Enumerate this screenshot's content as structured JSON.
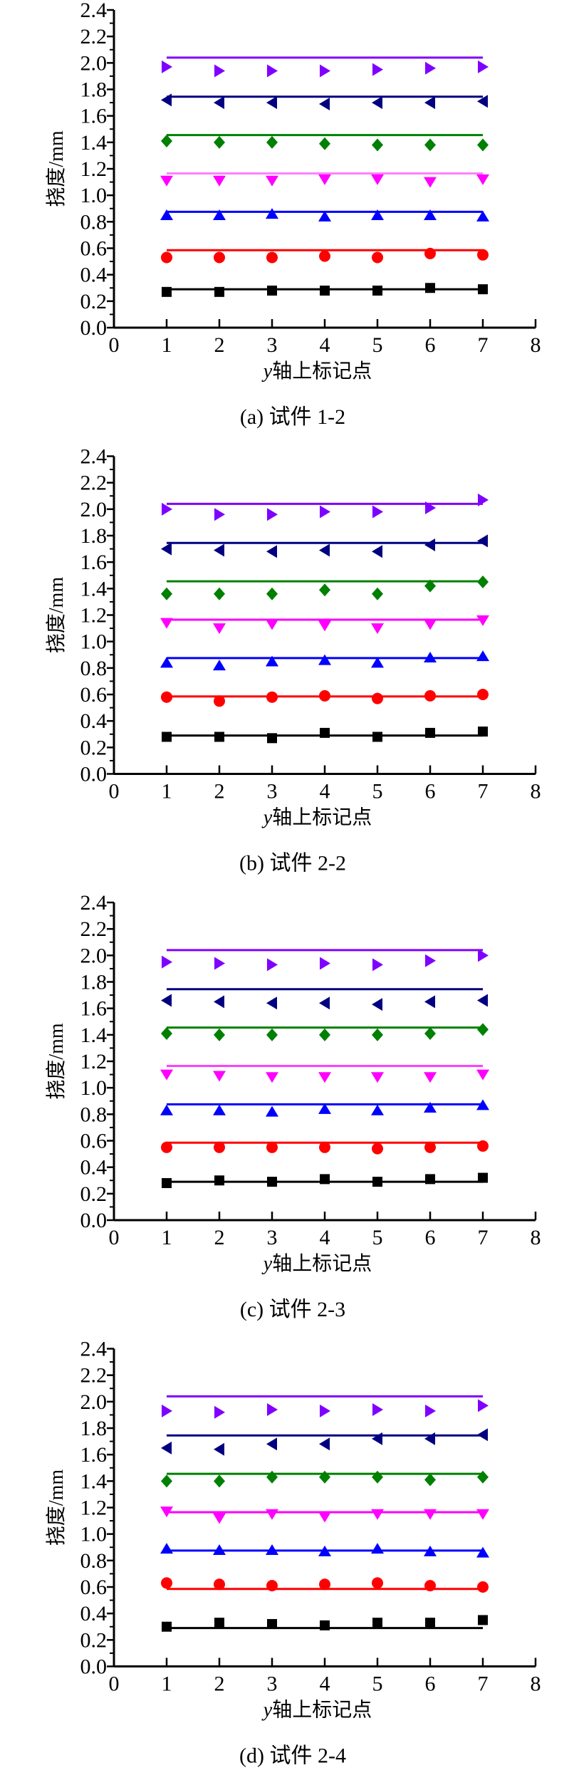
{
  "chart_data": [
    {
      "type": "scatter",
      "caption": "(a)  试件 1-2",
      "xlabel": "y轴上标记点",
      "ylabel": "挠度/mm",
      "xlim": [
        0,
        8
      ],
      "ylim": [
        0,
        2.4
      ],
      "xticks": [
        "0",
        "1",
        "2",
        "3",
        "4",
        "5",
        "6",
        "7",
        "8"
      ],
      "yticks": [
        "0.0",
        "0.2",
        "0.4",
        "0.6",
        "0.8",
        "1.0",
        "1.2",
        "1.4",
        "1.6",
        "1.8",
        "2.0",
        "2.2",
        "2.4"
      ],
      "x": [
        1,
        2,
        3,
        4,
        5,
        6,
        7
      ],
      "series": [
        {
          "marker": "square",
          "color": "#000000",
          "line_color": "#000000",
          "line_value": 0.29,
          "values": [
            0.27,
            0.27,
            0.28,
            0.28,
            0.28,
            0.3,
            0.29
          ]
        },
        {
          "marker": "circle",
          "color": "#ff0000",
          "line_color": "#ff0000",
          "line_value": 0.585,
          "values": [
            0.53,
            0.53,
            0.53,
            0.54,
            0.53,
            0.56,
            0.55
          ]
        },
        {
          "marker": "triangle-up",
          "color": "#0000ff",
          "line_color": "#0000ff",
          "line_value": 0.875,
          "values": [
            0.85,
            0.85,
            0.86,
            0.84,
            0.85,
            0.85,
            0.84
          ]
        },
        {
          "marker": "triangle-down",
          "color": "#ff00ff",
          "line_color": "#ff80ff",
          "line_value": 1.165,
          "values": [
            1.11,
            1.11,
            1.11,
            1.12,
            1.12,
            1.1,
            1.12
          ]
        },
        {
          "marker": "diamond",
          "color": "#008000",
          "line_color": "#008000",
          "line_value": 1.455,
          "values": [
            1.41,
            1.4,
            1.4,
            1.39,
            1.38,
            1.38,
            1.38
          ]
        },
        {
          "marker": "triangle-left",
          "color": "#000080",
          "line_color": "#000080",
          "line_value": 1.745,
          "values": [
            1.72,
            1.7,
            1.7,
            1.69,
            1.7,
            1.7,
            1.71
          ]
        },
        {
          "marker": "triangle-right",
          "color": "#8000ff",
          "line_color": "#8000ff",
          "line_value": 2.04,
          "values": [
            1.97,
            1.94,
            1.94,
            1.94,
            1.95,
            1.96,
            1.97
          ]
        }
      ]
    },
    {
      "type": "scatter",
      "caption": "(b)  试件 2-2",
      "xlabel": "y轴上标记点",
      "ylabel": "挠度/mm",
      "xlim": [
        0,
        8
      ],
      "ylim": [
        0,
        2.4
      ],
      "xticks": [
        "0",
        "1",
        "2",
        "3",
        "4",
        "5",
        "6",
        "7",
        "8"
      ],
      "yticks": [
        "0.0",
        "0.2",
        "0.4",
        "0.6",
        "0.8",
        "1.0",
        "1.2",
        "1.4",
        "1.6",
        "1.8",
        "2.0",
        "2.2",
        "2.4"
      ],
      "x": [
        1,
        2,
        3,
        4,
        5,
        6,
        7
      ],
      "series": [
        {
          "marker": "square",
          "color": "#000000",
          "line_color": "#000000",
          "line_value": 0.29,
          "values": [
            0.28,
            0.28,
            0.27,
            0.31,
            0.28,
            0.31,
            0.32
          ]
        },
        {
          "marker": "circle",
          "color": "#ff0000",
          "line_color": "#ff0000",
          "line_value": 0.585,
          "values": [
            0.58,
            0.55,
            0.58,
            0.59,
            0.57,
            0.59,
            0.6
          ]
        },
        {
          "marker": "triangle-up",
          "color": "#0000ff",
          "line_color": "#0000ff",
          "line_value": 0.875,
          "values": [
            0.84,
            0.82,
            0.85,
            0.86,
            0.84,
            0.88,
            0.89
          ]
        },
        {
          "marker": "triangle-down",
          "color": "#ff00ff",
          "line_color": "#ff00ff",
          "line_value": 1.165,
          "values": [
            1.14,
            1.1,
            1.13,
            1.12,
            1.1,
            1.13,
            1.16
          ]
        },
        {
          "marker": "diamond",
          "color": "#008000",
          "line_color": "#008000",
          "line_value": 1.455,
          "values": [
            1.36,
            1.36,
            1.36,
            1.39,
            1.36,
            1.42,
            1.45
          ]
        },
        {
          "marker": "triangle-left",
          "color": "#000080",
          "line_color": "#000080",
          "line_value": 1.745,
          "values": [
            1.7,
            1.69,
            1.68,
            1.69,
            1.68,
            1.73,
            1.76
          ]
        },
        {
          "marker": "triangle-right",
          "color": "#8000ff",
          "line_color": "#8000ff",
          "line_value": 2.04,
          "values": [
            2.0,
            1.96,
            1.96,
            1.98,
            1.98,
            2.01,
            2.07
          ]
        }
      ]
    },
    {
      "type": "scatter",
      "caption": "(c)  试件 2-3",
      "xlabel": "y轴上标记点",
      "ylabel": "挠度/mm",
      "xlim": [
        0,
        8
      ],
      "ylim": [
        0,
        2.4
      ],
      "xticks": [
        "0",
        "1",
        "2",
        "3",
        "4",
        "5",
        "6",
        "7",
        "8"
      ],
      "yticks": [
        "0.0",
        "0.2",
        "0.4",
        "0.6",
        "0.8",
        "1.0",
        "1.2",
        "1.4",
        "1.6",
        "1.8",
        "2.0",
        "2.2",
        "2.4"
      ],
      "x": [
        1,
        2,
        3,
        4,
        5,
        6,
        7
      ],
      "series": [
        {
          "marker": "square",
          "color": "#000000",
          "line_color": "#000000",
          "line_value": 0.29,
          "values": [
            0.28,
            0.3,
            0.29,
            0.31,
            0.29,
            0.31,
            0.32
          ]
        },
        {
          "marker": "circle",
          "color": "#ff0000",
          "line_color": "#ff0000",
          "line_value": 0.585,
          "values": [
            0.55,
            0.55,
            0.55,
            0.55,
            0.54,
            0.55,
            0.56
          ]
        },
        {
          "marker": "triangle-up",
          "color": "#0000ff",
          "line_color": "#0000ff",
          "line_value": 0.875,
          "values": [
            0.83,
            0.83,
            0.82,
            0.84,
            0.83,
            0.85,
            0.87
          ]
        },
        {
          "marker": "triangle-down",
          "color": "#ff00ff",
          "line_color": "#ff40ff",
          "line_value": 1.165,
          "values": [
            1.1,
            1.09,
            1.08,
            1.08,
            1.08,
            1.08,
            1.1
          ]
        },
        {
          "marker": "diamond",
          "color": "#008000",
          "line_color": "#008000",
          "line_value": 1.455,
          "values": [
            1.41,
            1.4,
            1.4,
            1.4,
            1.4,
            1.41,
            1.44
          ]
        },
        {
          "marker": "triangle-left",
          "color": "#000080",
          "line_color": "#000080",
          "line_value": 1.745,
          "values": [
            1.66,
            1.65,
            1.64,
            1.64,
            1.63,
            1.65,
            1.66
          ]
        },
        {
          "marker": "triangle-right",
          "color": "#8000ff",
          "line_color": "#8000ff",
          "line_value": 2.04,
          "values": [
            1.95,
            1.94,
            1.93,
            1.94,
            1.93,
            1.96,
            2.0
          ]
        }
      ]
    },
    {
      "type": "scatter",
      "caption": "(d)  试件 2-4",
      "xlabel": "y轴上标记点",
      "ylabel": "挠度/mm",
      "xlim": [
        0,
        8
      ],
      "ylim": [
        0,
        2.4
      ],
      "xticks": [
        "0",
        "1",
        "2",
        "3",
        "4",
        "5",
        "6",
        "7",
        "8"
      ],
      "yticks": [
        "0.0",
        "0.2",
        "0.4",
        "0.6",
        "0.8",
        "1.0",
        "1.2",
        "1.4",
        "1.6",
        "1.8",
        "2.0",
        "2.2",
        "2.4"
      ],
      "x": [
        1,
        2,
        3,
        4,
        5,
        6,
        7
      ],
      "series": [
        {
          "marker": "square",
          "color": "#000000",
          "line_color": "#000000",
          "line_value": 0.29,
          "values": [
            0.3,
            0.33,
            0.32,
            0.31,
            0.33,
            0.33,
            0.35
          ]
        },
        {
          "marker": "circle",
          "color": "#ff0000",
          "line_color": "#ff0000",
          "line_value": 0.585,
          "values": [
            0.63,
            0.62,
            0.61,
            0.62,
            0.63,
            0.61,
            0.6
          ]
        },
        {
          "marker": "triangle-up",
          "color": "#0000ff",
          "line_color": "#0000ff",
          "line_value": 0.875,
          "values": [
            0.89,
            0.88,
            0.88,
            0.87,
            0.89,
            0.87,
            0.86
          ]
        },
        {
          "marker": "triangle-down",
          "color": "#ff00ff",
          "line_color": "#ff00ff",
          "line_value": 1.165,
          "values": [
            1.17,
            1.12,
            1.15,
            1.13,
            1.15,
            1.15,
            1.15
          ]
        },
        {
          "marker": "diamond",
          "color": "#008000",
          "line_color": "#008000",
          "line_value": 1.455,
          "values": [
            1.4,
            1.4,
            1.43,
            1.43,
            1.43,
            1.41,
            1.43
          ]
        },
        {
          "marker": "triangle-left",
          "color": "#000080",
          "line_color": "#000080",
          "line_value": 1.745,
          "values": [
            1.65,
            1.64,
            1.68,
            1.68,
            1.72,
            1.72,
            1.75
          ]
        },
        {
          "marker": "triangle-right",
          "color": "#8000ff",
          "line_color": "#8000ff",
          "line_value": 2.04,
          "values": [
            1.93,
            1.92,
            1.94,
            1.93,
            1.94,
            1.93,
            1.97
          ]
        }
      ]
    }
  ]
}
